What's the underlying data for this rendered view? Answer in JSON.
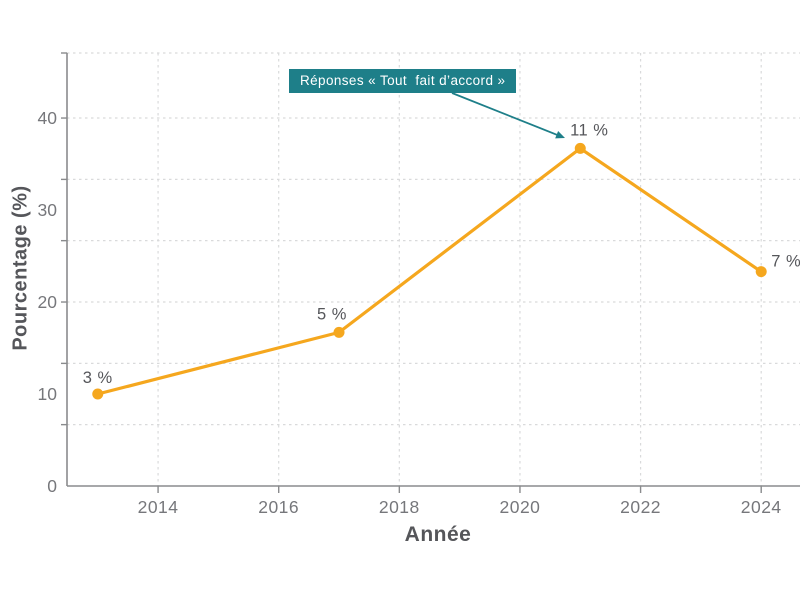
{
  "chart_data": {
    "type": "line",
    "title": "",
    "xlabel": "Année",
    "ylabel": "Pourcentage (%)",
    "x": [
      2013,
      2017,
      2021,
      2024
    ],
    "y_percent_plotted": [
      10,
      16.7,
      36.7,
      23.3
    ],
    "point_labels": [
      "3 %",
      "5 %",
      "11 %",
      "7 %"
    ],
    "x_ticks": {
      "values": [
        2014,
        2016,
        2018,
        2020,
        2022,
        2024
      ],
      "labels": [
        "2014",
        "2016",
        "2018",
        "2020",
        "2022",
        "2024"
      ]
    },
    "y_ticks": {
      "values": [
        0,
        10,
        20,
        30,
        40
      ],
      "labels": [
        "0",
        "10",
        "20",
        "30",
        "40"
      ]
    },
    "y_gridline_values": [
      6.67,
      13.33,
      20,
      26.67,
      33.33,
      40
    ],
    "xlim": [
      2012.49,
      2024.61
    ],
    "ylim": [
      0,
      47.07
    ],
    "grid": "dashed",
    "legend": null,
    "annotation": {
      "text": "Réponses « Tout  fait d’accord »",
      "points_to": {
        "x": 2021,
        "y_percent": 36.7
      }
    },
    "colors": {
      "line": "#F5A71E",
      "marker": "#F5A71E",
      "annotation_bg": "#1E7F89",
      "annotation_text": "#FFFFFF",
      "arrow": "#1E7F89",
      "gridline": "#D9DADB",
      "spine": "#8A8B8D",
      "tick_label": "#76777B",
      "point_label": "#55565A",
      "axis_title": "#55565A",
      "background": "#FFFFFF"
    }
  }
}
